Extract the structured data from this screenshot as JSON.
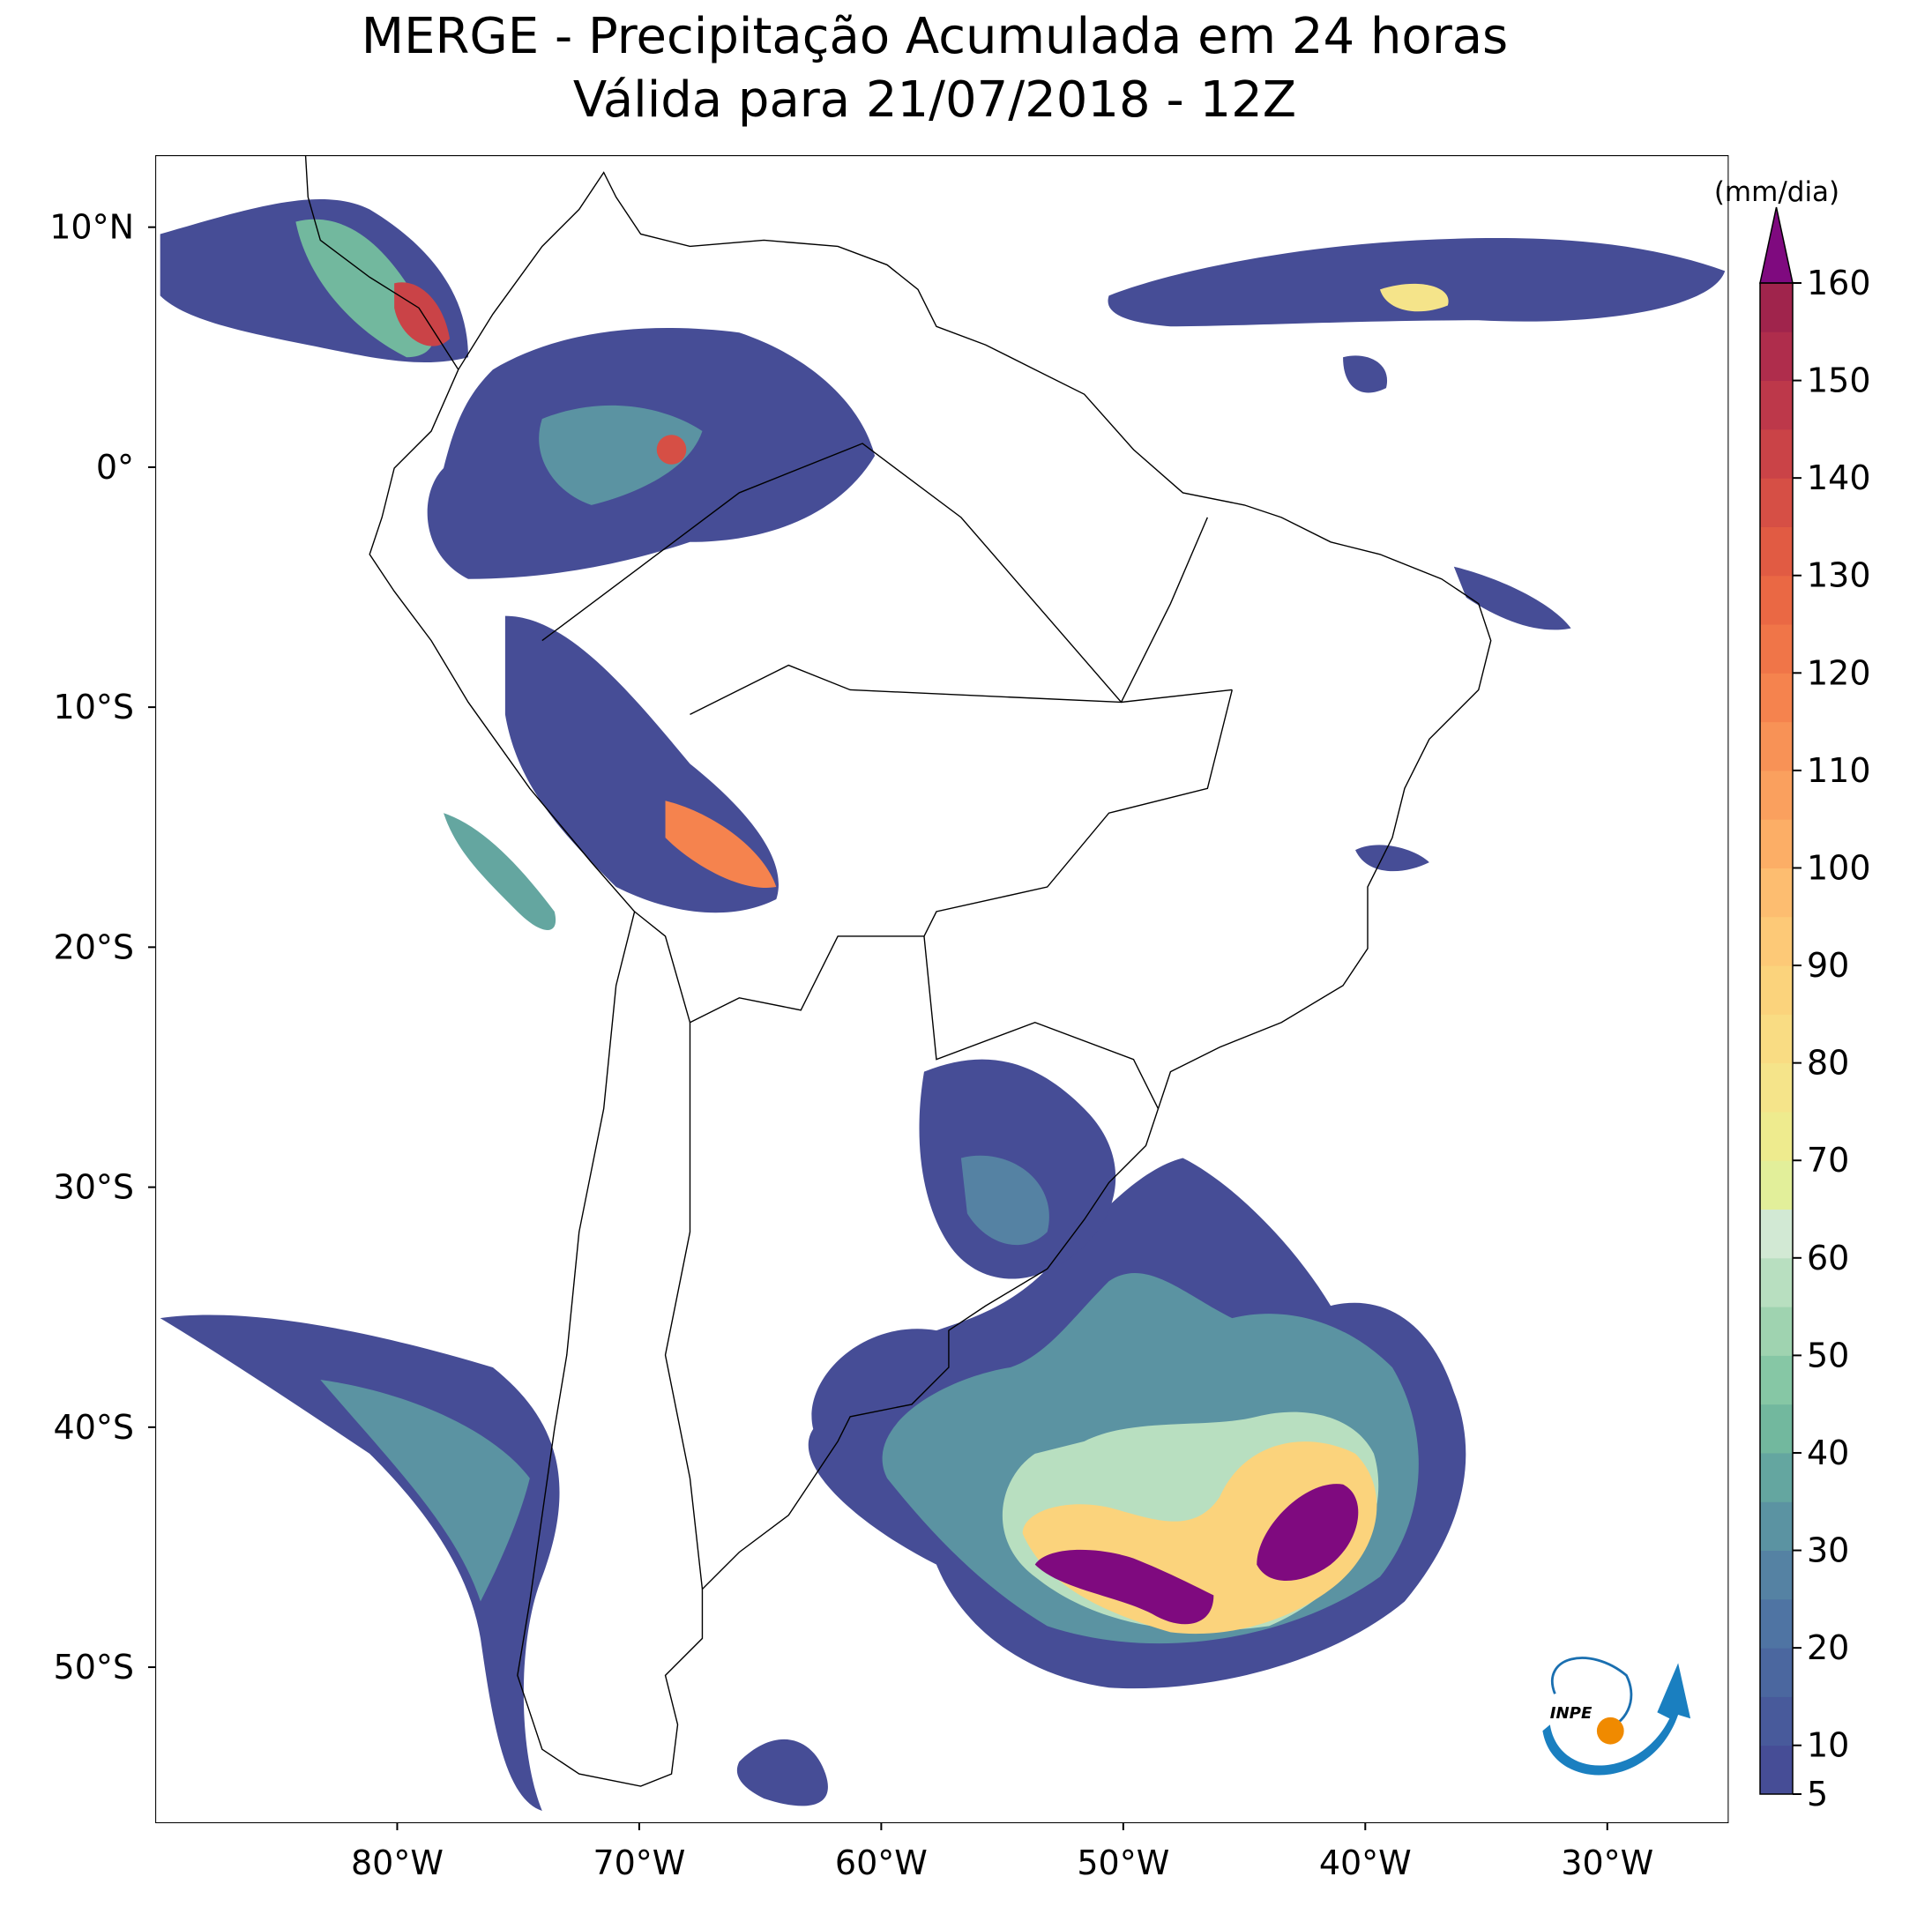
{
  "title": "MERGE - Precipitação Acumulada em 24 horas",
  "subtitle": "Válida para 21/07/2018 - 12Z",
  "map": {
    "lonlim": [
      -90,
      -25
    ],
    "latlim": [
      -56.5,
      13
    ],
    "lon_ticks": [
      {
        "value": -80,
        "label": "80°W"
      },
      {
        "value": -70,
        "label": "70°W"
      },
      {
        "value": -60,
        "label": "60°W"
      },
      {
        "value": -50,
        "label": "50°W"
      },
      {
        "value": -40,
        "label": "40°W"
      },
      {
        "value": -30,
        "label": "30°W"
      }
    ],
    "lat_ticks": [
      {
        "value": 10,
        "label": "10°N"
      },
      {
        "value": 0,
        "label": "0°"
      },
      {
        "value": -10,
        "label": "10°S"
      },
      {
        "value": -20,
        "label": "20°S"
      },
      {
        "value": -30,
        "label": "30°S"
      },
      {
        "value": -40,
        "label": "40°S"
      },
      {
        "value": -50,
        "label": "50°S"
      }
    ]
  },
  "colorbar": {
    "unit": "(mm/dia)",
    "levels": [
      5,
      10,
      15,
      20,
      25,
      30,
      35,
      40,
      45,
      50,
      55,
      60,
      65,
      70,
      75,
      80,
      85,
      90,
      95,
      100,
      105,
      110,
      115,
      120,
      125,
      130,
      135,
      140,
      145,
      150,
      155,
      160
    ],
    "colors": [
      "#464d96",
      "#485a9b",
      "#4b679f",
      "#4f74a3",
      "#5582a3",
      "#5b93a2",
      "#64a6a0",
      "#72b89e",
      "#86c7a5",
      "#9fd3b0",
      "#b8dfc0",
      "#d2e9d4",
      "#e2ef9a",
      "#eeeb8e",
      "#f5e48a",
      "#f9dc83",
      "#fbd37c",
      "#fdc977",
      "#fdbd70",
      "#fcae66",
      "#faa05e",
      "#f89256",
      "#f5834e",
      "#f07548",
      "#ea6844",
      "#e15b43",
      "#d64f45",
      "#ca4347",
      "#bd384a",
      "#af2d4c",
      "#a0244c"
    ],
    "over_color": "#7f0a7f",
    "ticks": [
      5,
      10,
      20,
      30,
      40,
      50,
      60,
      70,
      80,
      90,
      100,
      110,
      120,
      130,
      140,
      150,
      160
    ]
  },
  "logo": "INPE"
}
